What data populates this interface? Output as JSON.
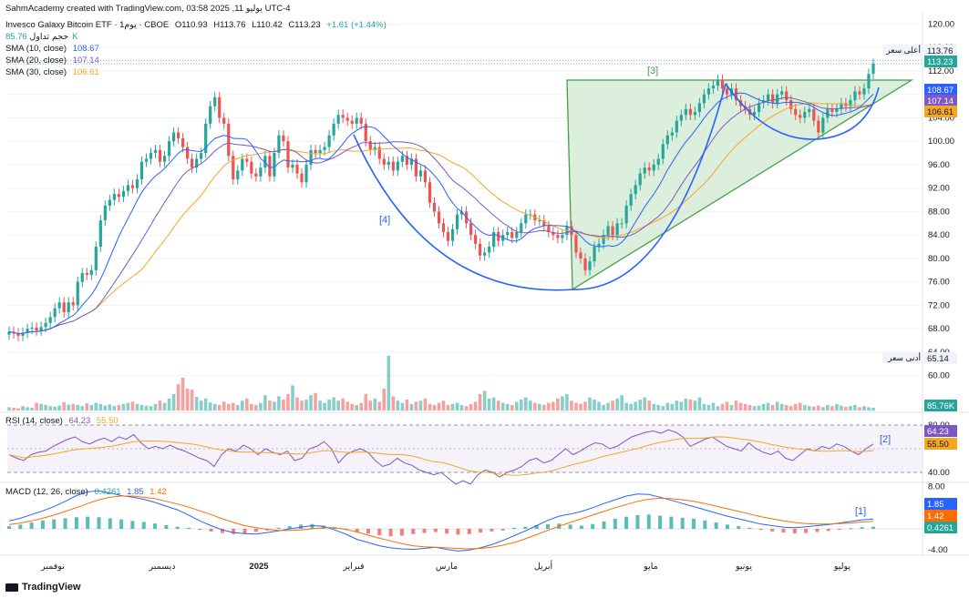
{
  "header": {
    "created_by": "SahmAcademy created with TradingView.com, يوليو 11, 2025 03:58 UTC-4",
    "symbol": "Invesco Galaxy Bitcoin ETF · يوم1 · CBOE",
    "open": "O110.93",
    "high": "H113.76",
    "low": "L110.42",
    "close": "C113.23",
    "change": "+1.61 (+1.44%)",
    "volume_label": "حجم تداول",
    "volume_value": "85.76K",
    "sma10_label": "SMA (10, close)",
    "sma10_value": "108.67",
    "sma20_label": "SMA (20, close)",
    "sma20_value": "107.14",
    "sma30_label": "SMA (30, close)",
    "sma30_value": "106.61",
    "rsi_label": "RSI (14, close)",
    "rsi_value": "64.23",
    "rsi_ma_value": "55.50",
    "macd_label": "MACD (12, 26, close)",
    "macd_hist": "0.4261",
    "macd_line": "1.85",
    "macd_signal": "1.42"
  },
  "colors": {
    "up": "#26a69a",
    "down": "#ef5350",
    "sma10": "#2962ff",
    "sma20": "#7e57c2",
    "sma30": "#f5a623",
    "rsi": "#7e57c2",
    "rsi_ma": "#f5a623",
    "macd": "#2962ff",
    "signal": "#ff6d00",
    "pattern_fill": "#c8e6c9",
    "pattern_line": "#43a047",
    "cup": "#2962ff"
  },
  "chart_data": {
    "type": "candlestick",
    "price_axis": {
      "ticks": [
        "120.00",
        "116.00",
        "112.00",
        "108.00",
        "104.00",
        "100.00",
        "96.00",
        "92.00",
        "88.00",
        "84.00",
        "80.00",
        "76.00",
        "72.00",
        "68.00",
        "64.00",
        "60.00"
      ],
      "range": [
        57,
        121
      ]
    },
    "rsi_axis": {
      "ticks": [
        "80.00",
        "40.00"
      ]
    },
    "macd_axis": {
      "ticks": [
        "8.00",
        "4.00",
        "-4.00"
      ]
    },
    "time_axis": [
      "نوفمبر",
      "ديسمبر",
      "2025",
      "فبراير",
      "مارس",
      "أبريل",
      "مايو",
      "يونيو",
      "يوليو"
    ],
    "price_labels": [
      {
        "text": "أعلى سعر",
        "value": "113.76"
      },
      {
        "text": "",
        "value": "113.23"
      },
      {
        "text": "",
        "value": "108.67"
      },
      {
        "text": "",
        "value": "107.14"
      },
      {
        "text": "",
        "value": "106.61"
      },
      {
        "text": "أدنى سعر",
        "value": "65.14"
      },
      {
        "text": "",
        "value": "85.76K"
      }
    ],
    "annotations": [
      "[4]",
      "[3]",
      "[2]",
      "[1]"
    ],
    "closes": [
      67.5,
      67.2,
      66.8,
      67.3,
      68.0,
      68.2,
      67.7,
      68.3,
      69.0,
      70.0,
      71.5,
      72.5,
      70.8,
      72.5,
      72.0,
      76.0,
      77.5,
      77.2,
      78.0,
      82.0,
      86.5,
      89.0,
      90.0,
      91.0,
      90.5,
      91.5,
      92.5,
      92.0,
      93.5,
      96.5,
      97.0,
      98.0,
      98.5,
      96.5,
      97.5,
      100.0,
      101.5,
      100.5,
      99.0,
      97.0,
      95.5,
      97.0,
      98.0,
      103.0,
      106.0,
      107.5,
      104.0,
      103.0,
      97.5,
      93.5,
      95.0,
      97.0,
      96.5,
      94.5,
      94.0,
      95.5,
      97.5,
      94.0,
      98.0,
      101.0,
      100.0,
      95.5,
      96.0,
      94.5,
      93.0,
      96.0,
      98.5,
      98.0,
      98.5,
      99.0,
      101.0,
      103.0,
      104.5,
      104.0,
      103.5,
      103.0,
      104.0,
      103.0,
      100.0,
      98.5,
      99.0,
      97.0,
      96.0,
      96.5,
      95.0,
      96.5,
      97.5,
      96.0,
      97.0,
      94.0,
      95.0,
      93.0,
      89.5,
      88.0,
      86.0,
      84.5,
      83.0,
      85.0,
      87.5,
      88.0,
      86.0,
      84.0,
      82.5,
      80.5,
      81.0,
      82.0,
      84.5,
      83.0,
      84.0,
      84.5,
      83.5,
      84.5,
      86.0,
      87.5,
      87.5,
      86.5,
      86.5,
      85.5,
      84.5,
      84.0,
      83.5,
      84.0,
      85.5,
      84.0,
      81.0,
      80.0,
      78.0,
      79.5,
      82.0,
      82.5,
      84.0,
      85.5,
      84.0,
      86.0,
      86.0,
      89.0,
      91.0,
      92.5,
      94.5,
      95.5,
      95.0,
      96.0,
      97.0,
      99.5,
      101.0,
      101.5,
      103.5,
      104.5,
      105.5,
      104.5,
      105.0,
      106.5,
      108.0,
      109.0,
      109.5,
      110.5,
      109.0,
      108.0,
      109.0,
      107.0,
      106.0,
      105.5,
      104.5,
      105.0,
      106.5,
      107.0,
      108.0,
      106.5,
      108.0,
      108.5,
      107.0,
      105.5,
      104.5,
      104.0,
      105.0,
      105.5,
      103.5,
      101.5,
      104.0,
      105.5,
      105.0,
      105.5,
      106.5,
      106.0,
      107.0,
      108.5,
      108.0,
      109.0,
      111.5,
      113.23
    ],
    "rsi_values": [
      55,
      52,
      50,
      55,
      57,
      58,
      62,
      65,
      68,
      70,
      66,
      64,
      67,
      69,
      66,
      70,
      68,
      72,
      65,
      60,
      62,
      60,
      63,
      60,
      58,
      55,
      52,
      50,
      45,
      55,
      60,
      58,
      63,
      60,
      55,
      60,
      57,
      55,
      58,
      50,
      52,
      60,
      62,
      66,
      60,
      48,
      55,
      58,
      60,
      57,
      50,
      45,
      47,
      52,
      48,
      46,
      42,
      40,
      38,
      40,
      35,
      30,
      33,
      30,
      38,
      42,
      40,
      36,
      40,
      42,
      45,
      50,
      52,
      48,
      50,
      55,
      60,
      55,
      58,
      62,
      65,
      64,
      60,
      62,
      66,
      70,
      72,
      74,
      75,
      73,
      76,
      74,
      70,
      62,
      65,
      68,
      70,
      66,
      62,
      60,
      58,
      65,
      60,
      57,
      55,
      58,
      52,
      50,
      55,
      60,
      58,
      62,
      60,
      64,
      62,
      58,
      55,
      60,
      64
    ],
    "macd_hist": [
      0.5,
      0.8,
      1.2,
      1.6,
      1.8,
      2.0,
      2.2,
      2.3,
      2.2,
      2.0,
      1.8,
      1.5,
      1.3,
      1.0,
      0.7,
      0.4,
      0.2,
      -0.2,
      -0.5,
      -0.8,
      -1.0,
      -0.9,
      -0.6,
      -0.3,
      0.2,
      0.5,
      0.8,
      0.9,
      0.6,
      0.3,
      -0.2,
      -0.6,
      -0.9,
      -1.2,
      -1.4,
      -1.3,
      -1.0,
      -0.8,
      -0.6,
      -0.9,
      -1.1,
      -1.0,
      -0.7,
      -0.5,
      -0.3,
      0.2,
      0.4,
      0.7,
      0.9,
      1.0,
      0.8,
      0.6,
      0.9,
      1.4,
      1.9,
      2.3,
      2.6,
      2.7,
      2.5,
      2.3,
      2.1,
      1.9,
      1.6,
      1.2,
      0.8,
      0.5,
      0.2,
      -0.2,
      -0.5,
      -0.7,
      -0.9,
      -0.8,
      -0.6,
      -0.4,
      -0.2,
      0.1,
      0.3,
      0.4
    ],
    "macd_line": [
      1.5,
      2.0,
      2.7,
      3.4,
      4.2,
      5.2,
      6.3,
      7.0,
      7.2,
      6.8,
      6.3,
      6.0,
      5.6,
      5.0,
      4.3,
      3.6,
      2.6,
      1.5,
      0.6,
      -0.2,
      -0.7,
      -0.9,
      -1.0,
      -0.7,
      -0.4,
      0.0,
      0.3,
      0.6,
      0.5,
      -0.2,
      -1.0,
      -2.0,
      -2.6,
      -3.2,
      -3.6,
      -3.8,
      -3.9,
      -3.7,
      -3.5,
      -3.9,
      -4.2,
      -4.0,
      -3.6,
      -3.0,
      -2.2,
      -1.3,
      -0.4,
      0.6,
      1.6,
      2.4,
      2.8,
      3.3,
      4.0,
      4.8,
      5.5,
      6.2,
      6.6,
      6.5,
      6.0,
      5.4,
      4.8,
      4.2,
      3.6,
      3.0,
      2.4,
      1.9,
      1.4,
      0.9,
      0.6,
      0.3,
      0.2,
      0.4,
      0.6,
      0.8,
      1.1,
      1.4,
      1.7,
      1.85
    ],
    "signal_line": [
      0.8,
      1.1,
      1.5,
      2.0,
      2.6,
      3.3,
      4.0,
      4.8,
      5.5,
      6.0,
      6.2,
      6.2,
      6.0,
      5.7,
      5.2,
      4.7,
      4.1,
      3.4,
      2.7,
      1.9,
      1.2,
      0.6,
      0.2,
      -0.1,
      -0.3,
      -0.3,
      -0.2,
      0.0,
      0.2,
      0.2,
      -0.1,
      -0.6,
      -1.2,
      -1.8,
      -2.3,
      -2.8,
      -3.2,
      -3.4,
      -3.5,
      -3.6,
      -3.7,
      -3.8,
      -3.7,
      -3.5,
      -3.1,
      -2.6,
      -1.9,
      -1.1,
      -0.3,
      0.5,
      1.2,
      1.9,
      2.6,
      3.3,
      4.0,
      4.6,
      5.2,
      5.6,
      5.8,
      5.7,
      5.5,
      5.2,
      4.8,
      4.3,
      3.8,
      3.3,
      2.8,
      2.3,
      1.9,
      1.5,
      1.2,
      1.0,
      0.9,
      0.9,
      1.0,
      1.1,
      1.3,
      1.42
    ]
  }
}
